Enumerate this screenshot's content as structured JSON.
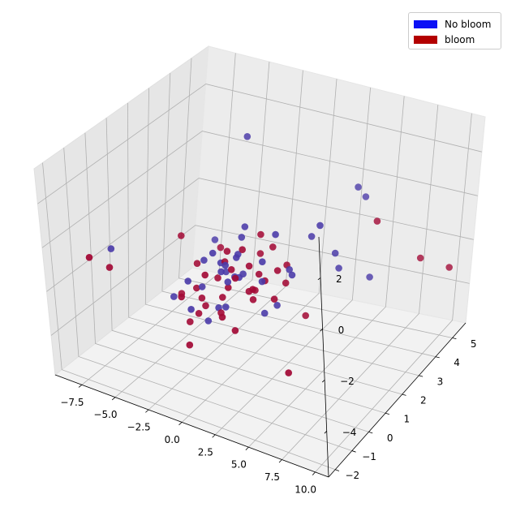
{
  "chart_data": {
    "type": "scatter",
    "projection": "3d",
    "title": "",
    "xlabel": "",
    "ylabel": "",
    "zlabel": "",
    "grid": true,
    "legend_placement": "top-right",
    "xlim": [
      -9.5,
      11
    ],
    "ylim": [
      -2.4,
      5.8
    ],
    "zlim": [
      -5.8,
      3.6
    ],
    "x_ticks": [
      -7.5,
      -5.0,
      -2.5,
      0.0,
      2.5,
      5.0,
      7.5,
      10.0
    ],
    "x_tick_labels": [
      "−7.5",
      "−5.0",
      "−2.5",
      "0.0",
      "2.5",
      "5.0",
      "7.5",
      "10.0"
    ],
    "y_ticks": [
      -2,
      -1,
      0,
      1,
      2,
      3,
      4,
      5
    ],
    "y_tick_labels": [
      "−2",
      "−1",
      "0",
      "1",
      "2",
      "3",
      "4",
      "5"
    ],
    "z_ticks": [
      -4,
      -2,
      0,
      2
    ],
    "z_tick_labels": [
      "−4",
      "−2",
      "0",
      "2"
    ],
    "series": [
      {
        "name": "No bloom",
        "legend_color": "#0b10f5",
        "point_color": "#4a3aa8",
        "points": [
          [
            -1.5,
            2.5,
            3.0
          ],
          [
            -3.9,
            2.6,
            -1.9
          ],
          [
            -6.8,
            -0.8,
            -0.6
          ],
          [
            -3.7,
            0.2,
            -2.8
          ],
          [
            -1.7,
            0.3,
            -2.1
          ],
          [
            -1.9,
            -0.3,
            -1.5
          ],
          [
            -1.8,
            0.5,
            -1.1
          ],
          [
            -0.6,
            0.8,
            -1.6
          ],
          [
            0.5,
            0.7,
            -1.6
          ],
          [
            -1.0,
            0.4,
            -0.6
          ],
          [
            0.3,
            1.0,
            -0.1
          ],
          [
            0.4,
            1.1,
            0.3
          ],
          [
            0.6,
            0.5,
            -0.6
          ],
          [
            -0.4,
            0.4,
            -1.3
          ],
          [
            -1.6,
            -0.4,
            -2.6
          ],
          [
            0.5,
            0.1,
            -1.4
          ],
          [
            -0.1,
            0.9,
            -1.8
          ],
          [
            0.2,
            0.2,
            -0.8
          ],
          [
            0.8,
            0.7,
            -1.4
          ],
          [
            -0.7,
            0.6,
            -1.1
          ],
          [
            0.3,
            0.8,
            -0.7
          ],
          [
            2.2,
            0.7,
            -1.5
          ],
          [
            4.6,
            2.9,
            -1.4
          ],
          [
            4.9,
            2.9,
            -2.0
          ],
          [
            4.8,
            1.9,
            0.5
          ],
          [
            -1.3,
            0.3,
            -3.5
          ],
          [
            3.5,
            2.4,
            -0.5
          ],
          [
            2.8,
            1.0,
            0.4
          ],
          [
            3.4,
            1.3,
            -1.2
          ],
          [
            3.6,
            1.3,
            -1.4
          ],
          [
            2.9,
            1.0,
            -2.6
          ],
          [
            2.1,
            0.9,
            -3.0
          ],
          [
            -0.5,
            0.3,
            -2.8
          ],
          [
            0.3,
            0.1,
            -2.5
          ],
          [
            3.8,
            4.6,
            0.2
          ],
          [
            4.0,
            4.9,
            -0.4
          ],
          [
            5.3,
            4.4,
            -3.4
          ],
          [
            2.8,
            0.3,
            -0.3
          ]
        ]
      },
      {
        "name": "bloom",
        "legend_color": "#b30000",
        "point_color": "#a30a36",
        "points": [
          [
            -3.2,
            2.4,
            -2.0
          ],
          [
            -6.4,
            -1.2,
            -1.1
          ],
          [
            -6.5,
            -2.1,
            -0.1
          ],
          [
            -2.0,
            0.3,
            -3.3
          ],
          [
            -2.4,
            0.5,
            -2.4
          ],
          [
            -2.0,
            -0.6,
            -2.0
          ],
          [
            -2.6,
            0.7,
            -1.5
          ],
          [
            -1.2,
            0.1,
            -2.7
          ],
          [
            -0.4,
            0.6,
            -1.0
          ],
          [
            -0.9,
            -0.1,
            -1.2
          ],
          [
            0.1,
            0.4,
            -1.9
          ],
          [
            -0.2,
            0.3,
            -2.3
          ],
          [
            0.5,
            0.5,
            -1.5
          ],
          [
            1.7,
            0.9,
            -1.4
          ],
          [
            2.0,
            1.0,
            -1.7
          ],
          [
            1.5,
            0.5,
            -1.9
          ],
          [
            1.9,
            1.5,
            -0.6
          ],
          [
            1.4,
            0.6,
            -0.9
          ],
          [
            -0.5,
            0.8,
            -0.7
          ],
          [
            0.5,
            0.3,
            -1.0
          ],
          [
            2.8,
            1.6,
            -1.3
          ],
          [
            3.0,
            1.4,
            -1.9
          ],
          [
            2.8,
            1.1,
            -1.2
          ],
          [
            3.1,
            0.7,
            -2.1
          ],
          [
            1.2,
            0.4,
            -0.1
          ],
          [
            5.6,
            4.4,
            -0.9
          ],
          [
            8.2,
            5.0,
            -2.6
          ],
          [
            10.0,
            5.3,
            -3.0
          ],
          [
            -1.4,
            -0.7,
            -3.9
          ],
          [
            1.1,
            0.0,
            -3.3
          ],
          [
            3.7,
            2.0,
            -3.6
          ],
          [
            -3.8,
            0.7,
            -3.0
          ],
          [
            -2.4,
            0.1,
            -3.6
          ],
          [
            -1.6,
            0.2,
            -2.5
          ],
          [
            0.3,
            -0.1,
            -2.8
          ],
          [
            1.0,
            1.2,
            -2.4
          ],
          [
            -0.2,
            0.2,
            -2.9
          ],
          [
            0.7,
            1.7,
            -1.2
          ],
          [
            -0.8,
            0.5,
            -1.7
          ],
          [
            2.2,
            0.2,
            -1.5
          ],
          [
            1.0,
            1.5,
            -0.2
          ],
          [
            1.8,
            0.5,
            -2.2
          ],
          [
            -4.6,
            1.3,
            -1.0
          ],
          [
            4.9,
            0.1,
            -4.5
          ]
        ]
      }
    ]
  },
  "legend": {
    "items": [
      {
        "label": "No bloom",
        "color": "#0b10f5"
      },
      {
        "label": "bloom",
        "color": "#b30000"
      }
    ]
  }
}
